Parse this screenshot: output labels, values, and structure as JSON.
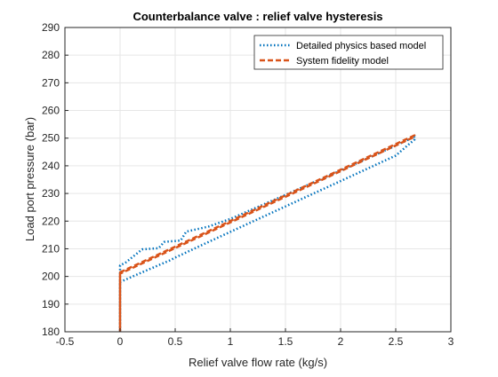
{
  "chart_data": {
    "type": "line",
    "title": "Counterbalance valve : relief valve hysteresis",
    "xlabel": "Relief valve flow rate (kg/s)",
    "ylabel": "Load port pressure (bar)",
    "xlim": [
      -0.5,
      3
    ],
    "ylim": [
      180,
      290
    ],
    "xticks": [
      -0.5,
      0,
      0.5,
      1,
      1.5,
      2,
      2.5,
      3
    ],
    "xtick_labels": [
      "-0.5",
      "0",
      "0.5",
      "1",
      "1.5",
      "2",
      "2.5",
      "3"
    ],
    "yticks": [
      180,
      190,
      200,
      210,
      220,
      230,
      240,
      250,
      260,
      270,
      280,
      290
    ],
    "ytick_labels": [
      "180",
      "190",
      "200",
      "210",
      "220",
      "230",
      "240",
      "250",
      "260",
      "270",
      "280",
      "290"
    ],
    "grid": true,
    "legend_position": "top-right",
    "series": [
      {
        "name": "Detailed physics based model",
        "color": "#0072BD",
        "style": "dotted",
        "x": [
          0,
          0,
          0,
          0.2,
          0.45,
          0.5,
          0.75,
          1.0,
          1.5,
          2.0,
          2.5,
          2.67,
          2.67,
          2.5,
          2.0,
          1.5,
          1.0,
          0.8,
          0.6,
          0.55,
          0.4,
          0.35,
          0.2,
          0.05,
          0,
          0
        ],
        "y": [
          180,
          197.5,
          198,
          201.5,
          205.8,
          206.8,
          211.5,
          216.1,
          225.3,
          234.5,
          243.7,
          249.5,
          250.5,
          247.3,
          238.3,
          229.5,
          220.8,
          218.0,
          216.2,
          213.0,
          212.5,
          210.2,
          209.8,
          205.0,
          204.0,
          180
        ]
      },
      {
        "name": "System fidelity model",
        "color": "#D95319",
        "style": "dashed",
        "x": [
          0,
          0,
          2.67,
          2.67,
          0,
          0
        ],
        "y": [
          180,
          201,
          250.5,
          251,
          201.5,
          180
        ]
      }
    ]
  }
}
